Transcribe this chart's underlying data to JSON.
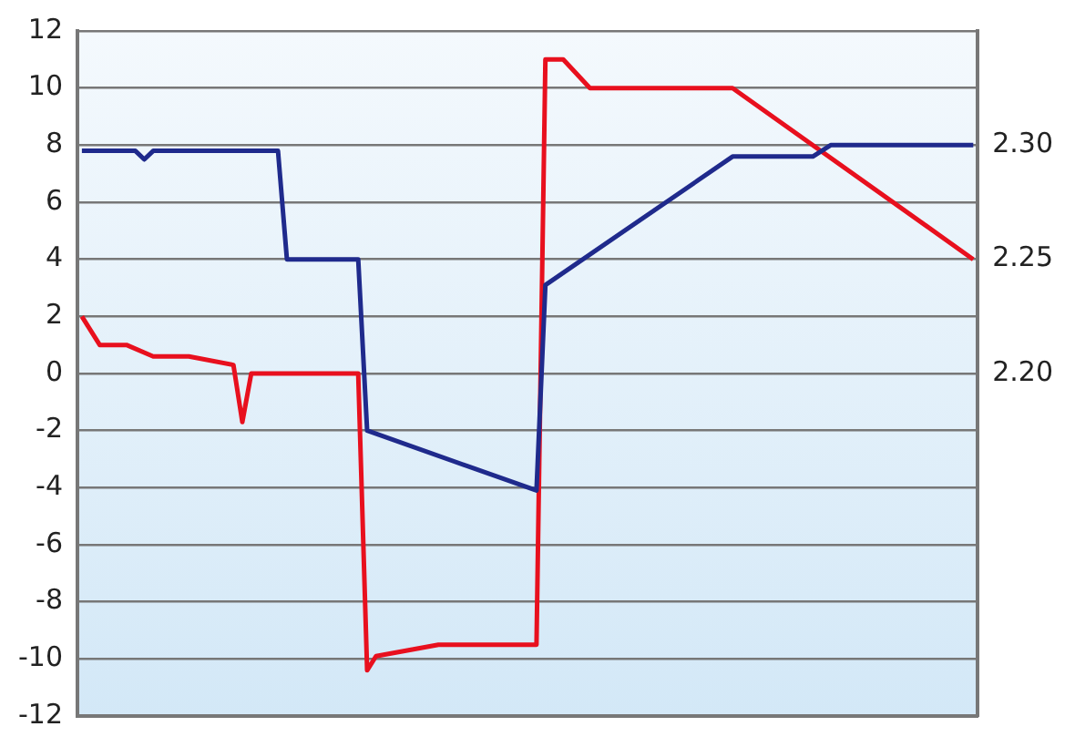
{
  "chart_data": {
    "type": "line",
    "ylim": [
      -12,
      12
    ],
    "yticks": [
      -12,
      -10,
      -8,
      -6,
      -4,
      -2,
      0,
      2,
      4,
      6,
      8,
      10,
      12
    ],
    "y2lim": [
      2.05,
      2.35
    ],
    "y2ticks": [
      {
        "value": 2.2,
        "label": "2.20"
      },
      {
        "value": 2.25,
        "label": "2.25"
      },
      {
        "value": 2.3,
        "label": "2.30"
      }
    ],
    "tick_labels": "y",
    "grid": "y",
    "legend": false,
    "marker": "none",
    "line_style": "solid",
    "categories": [
      null,
      null,
      null,
      null,
      null,
      null,
      null,
      null,
      null,
      null,
      null,
      null,
      null,
      null,
      null,
      null,
      null,
      null,
      null,
      null,
      null,
      null,
      null,
      null,
      null,
      null,
      null,
      null,
      null,
      null,
      null,
      null,
      null,
      null,
      null,
      null,
      null,
      null,
      null,
      null,
      null,
      null,
      null,
      null,
      null,
      null,
      null,
      null,
      null,
      null,
      null,
      null,
      null,
      null,
      null,
      null,
      null,
      null,
      null,
      null,
      null,
      null,
      null,
      null,
      null,
      null,
      null,
      null,
      null,
      null,
      null,
      null,
      null,
      null,
      null,
      null,
      null,
      null,
      null,
      null,
      null,
      null,
      null,
      null,
      null,
      null,
      null,
      null,
      null,
      null,
      null,
      null,
      null,
      null,
      null,
      null,
      null,
      null,
      null,
      null,
      null
    ],
    "series": [
      {
        "color": "#1f2a8c",
        "values": [
          7.8,
          null,
          null,
          null,
          null,
          null,
          7.8,
          7.5,
          7.8,
          null,
          null,
          null,
          null,
          null,
          null,
          null,
          null,
          null,
          null,
          null,
          null,
          null,
          7.8,
          4,
          null,
          null,
          null,
          null,
          null,
          null,
          null,
          4,
          -2,
          null,
          null,
          null,
          null,
          null,
          null,
          null,
          null,
          null,
          null,
          null,
          null,
          null,
          null,
          null,
          null,
          null,
          null,
          -4.1,
          3.1,
          null,
          null,
          null,
          null,
          null,
          null,
          null,
          null,
          null,
          null,
          null,
          null,
          null,
          null,
          null,
          null,
          null,
          null,
          null,
          null,
          7.6,
          null,
          null,
          null,
          null,
          null,
          null,
          null,
          null,
          7.6,
          null,
          8,
          null,
          null,
          null,
          null,
          null,
          null,
          null,
          null,
          null,
          null,
          null,
          null,
          null,
          null,
          null,
          8
        ]
      },
      {
        "color": "#e8101e",
        "values": [
          2,
          null,
          1,
          null,
          null,
          1,
          null,
          null,
          0.6,
          null,
          null,
          null,
          0.6,
          null,
          null,
          null,
          null,
          0.3,
          -1.7,
          0,
          null,
          null,
          null,
          null,
          null,
          null,
          null,
          null,
          null,
          null,
          null,
          0,
          -10.4,
          -9.9,
          null,
          null,
          null,
          null,
          null,
          null,
          -9.5,
          null,
          null,
          null,
          null,
          null,
          null,
          null,
          null,
          null,
          null,
          -9.5,
          11,
          null,
          11,
          null,
          null,
          10,
          null,
          null,
          null,
          null,
          null,
          null,
          null,
          null,
          null,
          null,
          null,
          null,
          null,
          null,
          null,
          10,
          null,
          null,
          null,
          null,
          null,
          null,
          null,
          null,
          null,
          null,
          null,
          null,
          null,
          null,
          null,
          null,
          null,
          null,
          null,
          null,
          null,
          null,
          null,
          null,
          null,
          null,
          4
        ]
      }
    ]
  }
}
